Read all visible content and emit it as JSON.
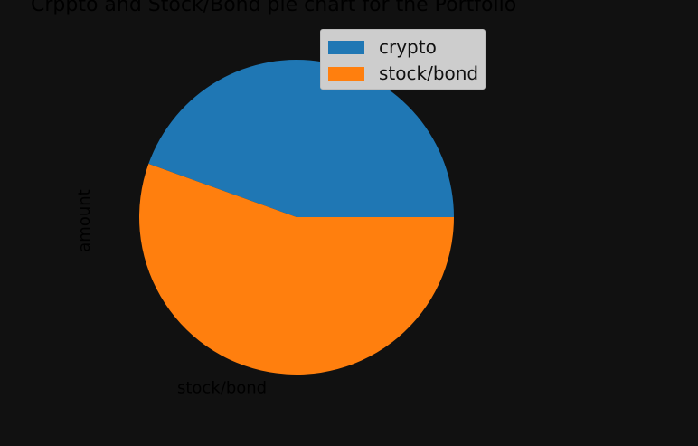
{
  "chart_data": {
    "type": "pie",
    "title": "Crppto and Stock/Bond pie chart for the Portfolio",
    "ylabel": "amount",
    "categories": [
      "crypto",
      "stock/bond"
    ],
    "values": [
      44.5,
      55.5
    ],
    "slice_labels": [
      "crypto",
      "stock/bond"
    ],
    "colors": [
      "#1f77b4",
      "#ff7f0e"
    ],
    "start_angle_deg": 0,
    "direction": "counterclockwise",
    "legend": {
      "placement": "upper-right",
      "entries": [
        "crypto",
        "stock/bond"
      ]
    }
  }
}
